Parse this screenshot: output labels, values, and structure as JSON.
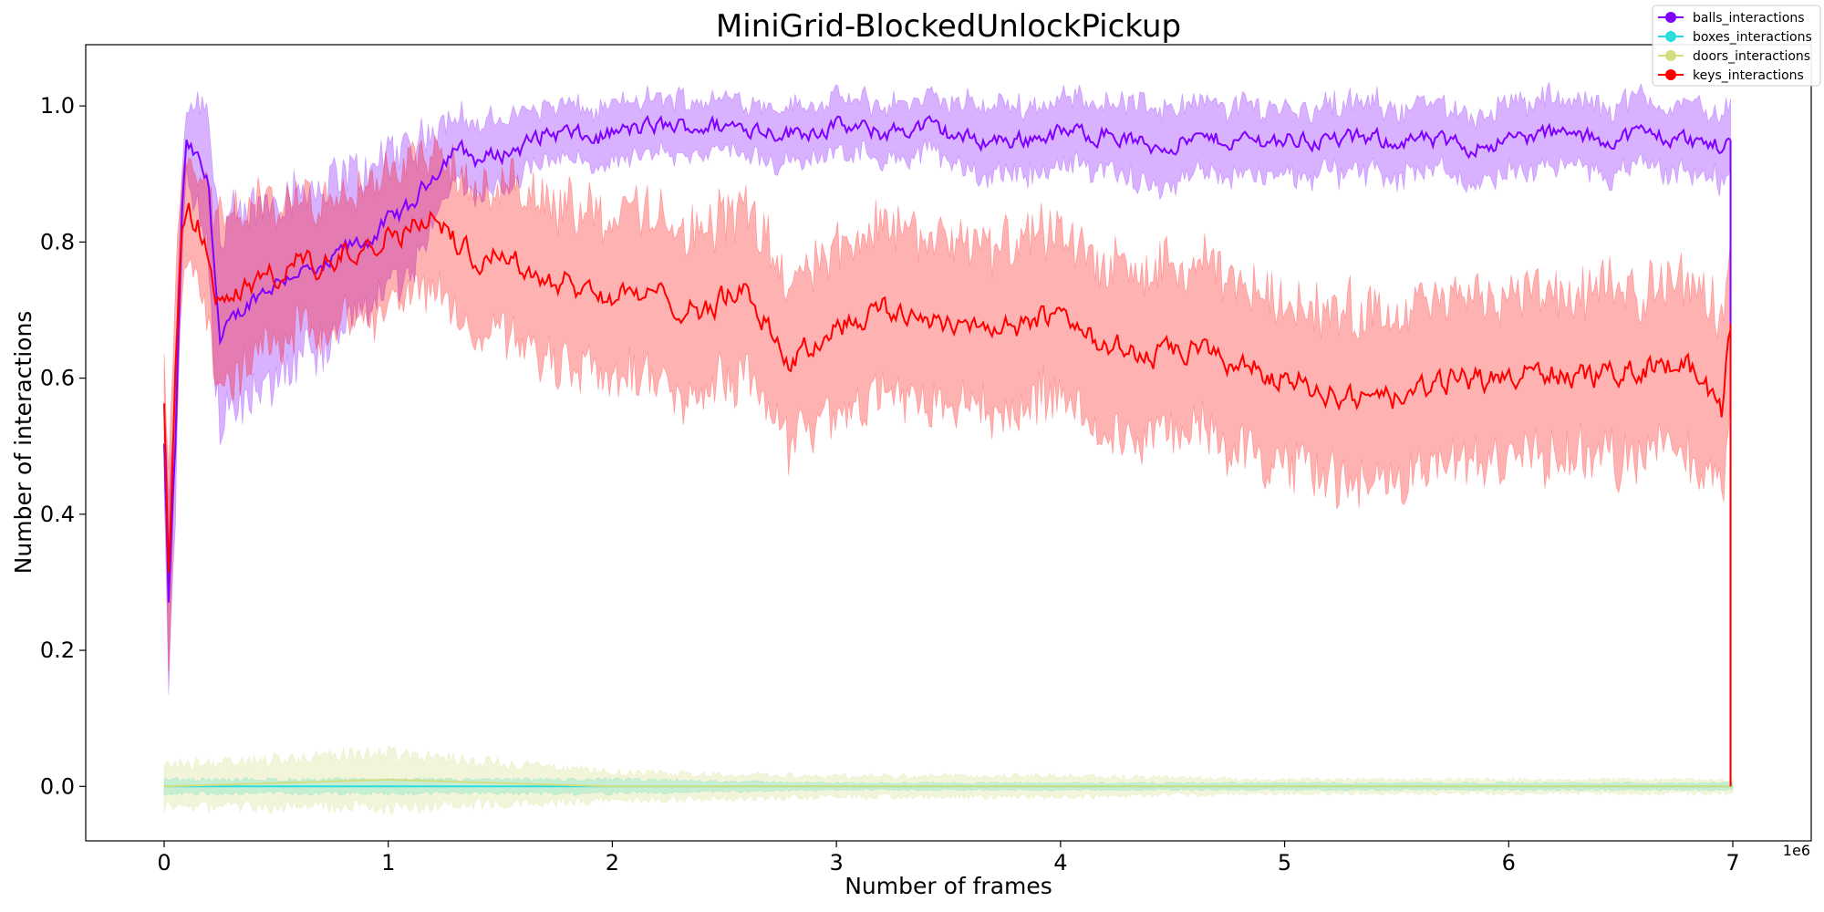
{
  "chart_data": {
    "type": "line",
    "title": "MiniGrid-BlockedUnlockPickup",
    "xlabel": "Number of frames",
    "ylabel": "Number of interactions",
    "x_offset_label": "1e6",
    "xlim": [
      -0.35,
      7.35
    ],
    "ylim": [
      -0.08,
      1.09
    ],
    "x_ticks": [
      0,
      1,
      2,
      3,
      4,
      5,
      6,
      7
    ],
    "x_tick_labels": [
      "0",
      "1",
      "2",
      "3",
      "4",
      "5",
      "6",
      "7"
    ],
    "y_ticks": [
      0.0,
      0.2,
      0.4,
      0.6,
      0.8,
      1.0
    ],
    "y_tick_labels": [
      "0.0",
      "0.2",
      "0.4",
      "0.6",
      "0.8",
      "1.0"
    ],
    "grid": false,
    "legend_position": "top-right",
    "series": [
      {
        "name": "balls_interactions",
        "color": "#7f00ff",
        "x": [
          0,
          0.02,
          0.05,
          0.08,
          0.1,
          0.15,
          0.2,
          0.25,
          0.3,
          0.4,
          0.5,
          0.6,
          0.7,
          0.8,
          0.9,
          1.0,
          1.1,
          1.2,
          1.3,
          1.4,
          1.5,
          1.6,
          1.7,
          1.8,
          1.9,
          2.0,
          2.2,
          2.4,
          2.6,
          2.8,
          3.0,
          3.2,
          3.4,
          3.6,
          3.8,
          4.0,
          4.2,
          4.4,
          4.6,
          4.8,
          5.0,
          5.2,
          5.4,
          5.6,
          5.8,
          6.0,
          6.2,
          6.4,
          6.6,
          6.8,
          6.95,
          6.99
        ],
        "y": [
          0.5,
          0.27,
          0.5,
          0.85,
          0.94,
          0.92,
          0.88,
          0.65,
          0.68,
          0.72,
          0.74,
          0.76,
          0.75,
          0.79,
          0.8,
          0.83,
          0.85,
          0.9,
          0.94,
          0.92,
          0.93,
          0.94,
          0.96,
          0.96,
          0.95,
          0.96,
          0.97,
          0.97,
          0.97,
          0.96,
          0.97,
          0.96,
          0.97,
          0.95,
          0.95,
          0.96,
          0.96,
          0.94,
          0.95,
          0.95,
          0.95,
          0.95,
          0.95,
          0.95,
          0.94,
          0.95,
          0.96,
          0.95,
          0.96,
          0.95,
          0.94,
          0.95
        ],
        "band": [
          0.06,
          0.12,
          0.1,
          0.06,
          0.05,
          0.08,
          0.12,
          0.15,
          0.14,
          0.13,
          0.13,
          0.12,
          0.12,
          0.11,
          0.1,
          0.1,
          0.09,
          0.07,
          0.05,
          0.05,
          0.05,
          0.05,
          0.04,
          0.04,
          0.04,
          0.04,
          0.04,
          0.04,
          0.04,
          0.04,
          0.04,
          0.04,
          0.04,
          0.05,
          0.05,
          0.05,
          0.05,
          0.06,
          0.05,
          0.05,
          0.05,
          0.05,
          0.05,
          0.05,
          0.05,
          0.05,
          0.05,
          0.05,
          0.05,
          0.05,
          0.05,
          0.05
        ]
      },
      {
        "name": "boxes_interactions",
        "color": "#2adddd",
        "x": [
          0,
          1,
          2,
          3,
          4,
          5,
          6,
          7
        ],
        "y": [
          0.0,
          0.0,
          0.0,
          0.0,
          0.0,
          0.0,
          0.0,
          0.0
        ],
        "band": [
          0.01,
          0.01,
          0.01,
          0.005,
          0.005,
          0.005,
          0.005,
          0.005
        ]
      },
      {
        "name": "doors_interactions",
        "color": "#d4dd80",
        "x": [
          0,
          1,
          2,
          3,
          4,
          5,
          6,
          7
        ],
        "y": [
          0.0,
          0.01,
          0.0,
          0.0,
          0.0,
          0.0,
          0.0,
          0.0
        ],
        "band": [
          0.03,
          0.04,
          0.02,
          0.015,
          0.015,
          0.01,
          0.01,
          0.01
        ]
      },
      {
        "name": "keys_interactions",
        "color": "#ff0000",
        "x": [
          0,
          0.02,
          0.05,
          0.08,
          0.1,
          0.15,
          0.2,
          0.25,
          0.3,
          0.4,
          0.5,
          0.6,
          0.7,
          0.8,
          0.9,
          1.0,
          1.1,
          1.2,
          1.3,
          1.4,
          1.5,
          1.6,
          1.7,
          1.8,
          1.9,
          2.0,
          2.2,
          2.4,
          2.6,
          2.8,
          3.0,
          3.2,
          3.4,
          3.6,
          3.8,
          4.0,
          4.2,
          4.4,
          4.6,
          4.8,
          5.0,
          5.2,
          5.4,
          5.6,
          5.8,
          6.0,
          6.2,
          6.4,
          6.6,
          6.8,
          6.95,
          6.99
        ],
        "y": [
          0.55,
          0.3,
          0.6,
          0.82,
          0.85,
          0.83,
          0.78,
          0.7,
          0.72,
          0.74,
          0.75,
          0.77,
          0.76,
          0.79,
          0.8,
          0.81,
          0.82,
          0.84,
          0.8,
          0.78,
          0.79,
          0.76,
          0.75,
          0.74,
          0.73,
          0.72,
          0.72,
          0.7,
          0.73,
          0.62,
          0.68,
          0.7,
          0.69,
          0.68,
          0.67,
          0.7,
          0.65,
          0.63,
          0.64,
          0.62,
          0.6,
          0.58,
          0.56,
          0.58,
          0.6,
          0.6,
          0.61,
          0.6,
          0.62,
          0.62,
          0.55,
          0.68
        ],
        "band": [
          0.08,
          0.15,
          0.12,
          0.08,
          0.07,
          0.07,
          0.1,
          0.12,
          0.12,
          0.11,
          0.1,
          0.1,
          0.1,
          0.1,
          0.1,
          0.1,
          0.1,
          0.1,
          0.1,
          0.1,
          0.11,
          0.12,
          0.12,
          0.12,
          0.12,
          0.12,
          0.12,
          0.12,
          0.12,
          0.12,
          0.12,
          0.12,
          0.12,
          0.12,
          0.12,
          0.12,
          0.12,
          0.12,
          0.12,
          0.12,
          0.12,
          0.12,
          0.13,
          0.12,
          0.12,
          0.12,
          0.12,
          0.12,
          0.12,
          0.13,
          0.13,
          0.13
        ]
      }
    ]
  }
}
